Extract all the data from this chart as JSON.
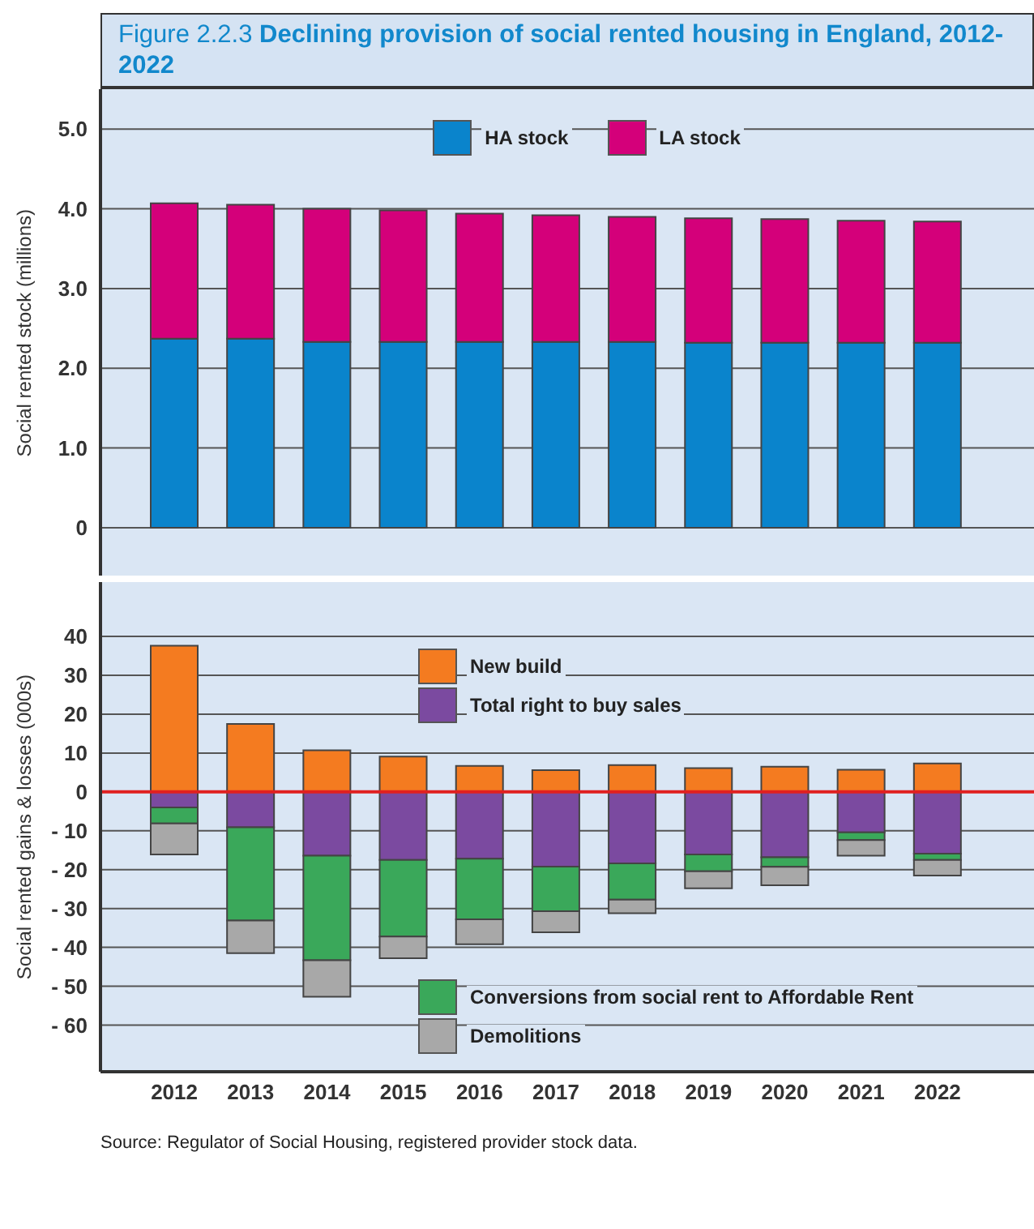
{
  "chart_data": [
    {
      "type": "bar",
      "title": "Figure 2.2.3 Declining provision of social rented housing in England, 2012-2022",
      "ylabel": "Social rented stock (millions)",
      "categories": [
        "2012",
        "2013",
        "2014",
        "2015",
        "2016",
        "2017",
        "2018",
        "2019",
        "2020",
        "2021",
        "2022"
      ],
      "series": [
        {
          "name": "HA stock",
          "color": "#0a84cc",
          "values": [
            2.37,
            2.37,
            2.33,
            2.33,
            2.33,
            2.33,
            2.33,
            2.32,
            2.32,
            2.32,
            2.32
          ]
        },
        {
          "name": "LA stock",
          "color": "#d4007a",
          "values": [
            1.7,
            1.68,
            1.67,
            1.65,
            1.61,
            1.59,
            1.57,
            1.56,
            1.55,
            1.53,
            1.52
          ]
        }
      ],
      "stacked": true,
      "ylim": [
        -0.6,
        5.5
      ],
      "yticks": [
        0,
        {
          "value": 1,
          "label": "1.0"
        },
        {
          "value": 2,
          "label": "2.0"
        },
        {
          "value": 3,
          "label": "3.0"
        },
        {
          "value": 4,
          "label": "4.0"
        },
        {
          "value": 5,
          "label": "5.0"
        }
      ],
      "grid": "y",
      "legend": "top",
      "tick_labels": "y"
    },
    {
      "type": "bar",
      "ylabel": "Social rented gains & losses (000s)",
      "categories": [
        "2012",
        "2013",
        "2014",
        "2015",
        "2016",
        "2017",
        "2018",
        "2019",
        "2020",
        "2021",
        "2022"
      ],
      "series": [
        {
          "name": "New build",
          "color": "#f47b20",
          "values": [
            37.6,
            17.5,
            10.7,
            9.1,
            6.7,
            5.6,
            6.9,
            6.1,
            6.5,
            5.7,
            7.3
          ]
        },
        {
          "name": "Total right to buy sales",
          "color": "#7b4aa0",
          "values": [
            -4,
            -9.1,
            -16.4,
            -17.5,
            -17.2,
            -19.2,
            -18.4,
            -16.1,
            -16.8,
            -10.4,
            -15.9
          ]
        },
        {
          "name": "Conversions from social rent to Affordable Rent",
          "color": "#3aa85a",
          "values": [
            -4.1,
            -24,
            -26.9,
            -19.7,
            -15.6,
            -11.5,
            -9.3,
            -4.3,
            -2.5,
            -2,
            -1.6
          ]
        },
        {
          "name": "Demolitions",
          "color": "#a8a8a8",
          "values": [
            -8,
            -8.4,
            -9.4,
            -5.6,
            -6.4,
            -5.4,
            -3.5,
            -4.4,
            -4.7,
            -4,
            -4
          ]
        }
      ],
      "stacked": true,
      "ylim": [
        -72,
        54
      ],
      "yticks": [
        {
          "value": -60,
          "label": "- 60"
        },
        {
          "value": -50,
          "label": "- 50"
        },
        {
          "value": -40,
          "label": "- 40"
        },
        {
          "value": -30,
          "label": "- 30"
        },
        {
          "value": -20,
          "label": "- 20"
        },
        {
          "value": -10,
          "label": "- 10"
        },
        0,
        10,
        20,
        30,
        40
      ],
      "ref_lines": [
        {
          "axis": "y",
          "value": 0,
          "color": "#e02020"
        }
      ],
      "grid": "y",
      "legend": "right",
      "annotations": [
        "Source: Regulator of Social Housing, registered provider stock data."
      ]
    }
  ]
}
